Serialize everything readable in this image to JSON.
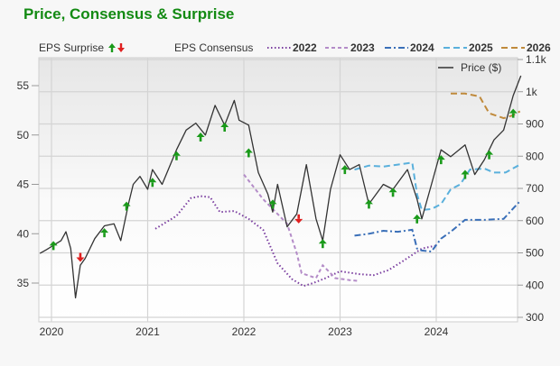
{
  "title": "Price, Consensus & Surprise",
  "legend": {
    "surprise_label": "EPS Surprise",
    "consensus_label": "EPS Consensus",
    "series": [
      {
        "name": "2022",
        "color": "#7b3fa0",
        "dash": "1.5,2.5"
      },
      {
        "name": "2023",
        "color": "#b48cc8",
        "dash": "4,3"
      },
      {
        "name": "2024",
        "color": "#3a6fb8",
        "dash": "7,3,2,3"
      },
      {
        "name": "2025",
        "color": "#5ab0dc",
        "dash": "7,4"
      },
      {
        "name": "2026",
        "color": "#c08a3c",
        "dash": "7,4"
      }
    ],
    "price_label": "Price ($)"
  },
  "colors": {
    "title": "#138a13",
    "up": "#1a9a1a",
    "down": "#e02020",
    "price": "#333333",
    "grid": "#d4d4d4"
  },
  "chart_data": {
    "type": "line",
    "title": "Price, Consensus & Surprise",
    "x_ticks": [
      "2020",
      "2021",
      "2022",
      "2023",
      "2024"
    ],
    "y_left": {
      "label": "EPS",
      "ticks": [
        35,
        40,
        45,
        50,
        55
      ],
      "range": [
        30.4,
        57.1
      ]
    },
    "y_right": {
      "label": "Price ($)",
      "ticks": [
        "300",
        "400",
        "500",
        "600",
        "700",
        "800",
        "900",
        "1k",
        "1.1k"
      ],
      "range": [
        290,
        1100
      ]
    },
    "price_points": [
      [
        2019.88,
        38
      ],
      [
        2019.95,
        38.4
      ],
      [
        2020.0,
        38.7
      ],
      [
        2020.05,
        39.0
      ],
      [
        2020.1,
        39.3
      ],
      [
        2020.15,
        40.2
      ],
      [
        2020.2,
        38.5
      ],
      [
        2020.25,
        33.5
      ],
      [
        2020.3,
        36.8
      ],
      [
        2020.35,
        37.5
      ],
      [
        2020.45,
        39.5
      ],
      [
        2020.55,
        40.8
      ],
      [
        2020.65,
        41.0
      ],
      [
        2020.72,
        39.3
      ],
      [
        2020.8,
        43.0
      ],
      [
        2020.85,
        45.0
      ],
      [
        2020.92,
        45.8
      ],
      [
        2021.0,
        44.5
      ],
      [
        2021.05,
        46.5
      ],
      [
        2021.15,
        45.0
      ],
      [
        2021.3,
        48.5
      ],
      [
        2021.4,
        50.5
      ],
      [
        2021.5,
        51.2
      ],
      [
        2021.6,
        50.0
      ],
      [
        2021.7,
        53.0
      ],
      [
        2021.8,
        51.0
      ],
      [
        2021.9,
        53.5
      ],
      [
        2021.95,
        51.5
      ],
      [
        2022.05,
        51.0
      ],
      [
        2022.15,
        46.2
      ],
      [
        2022.25,
        44.0
      ],
      [
        2022.3,
        42.2
      ],
      [
        2022.35,
        45.0
      ],
      [
        2022.45,
        40.7
      ],
      [
        2022.55,
        42.0
      ],
      [
        2022.65,
        47.0
      ],
      [
        2022.75,
        41.5
      ],
      [
        2022.82,
        39.3
      ],
      [
        2022.9,
        44.5
      ],
      [
        2023.0,
        48.0
      ],
      [
        2023.1,
        46.5
      ],
      [
        2023.2,
        47.0
      ],
      [
        2023.3,
        43.0
      ],
      [
        2023.45,
        45.0
      ],
      [
        2023.55,
        44.5
      ],
      [
        2023.7,
        46.5
      ],
      [
        2023.8,
        43.5
      ],
      [
        2023.85,
        41.5
      ],
      [
        2023.95,
        45.0
      ],
      [
        2024.05,
        48.5
      ],
      [
        2024.15,
        47.8
      ],
      [
        2024.3,
        49.0
      ],
      [
        2024.4,
        46.0
      ],
      [
        2024.5,
        47.5
      ],
      [
        2024.6,
        49.5
      ],
      [
        2024.7,
        50.5
      ],
      [
        2024.8,
        54.0
      ],
      [
        2024.88,
        56.0
      ]
    ],
    "consensus": {
      "2022": [
        [
          2021.08,
          40.5
        ],
        [
          2021.3,
          41.8
        ],
        [
          2021.45,
          43.6
        ],
        [
          2021.55,
          43.8
        ],
        [
          2021.65,
          43.7
        ],
        [
          2021.75,
          42.2
        ],
        [
          2021.9,
          42.3
        ],
        [
          2022.05,
          41.5
        ],
        [
          2022.2,
          40.4
        ],
        [
          2022.35,
          37.0
        ],
        [
          2022.5,
          35.4
        ],
        [
          2022.62,
          34.7
        ],
        [
          2022.72,
          35.0
        ],
        [
          2022.85,
          35.5
        ],
        [
          2023.0,
          36.2
        ],
        [
          2023.2,
          35.9
        ],
        [
          2023.35,
          35.8
        ],
        [
          2023.5,
          36.3
        ],
        [
          2023.65,
          37.2
        ],
        [
          2023.85,
          38.5
        ],
        [
          2024.0,
          38.8
        ]
      ],
      "2023": [
        [
          2022.0,
          46.0
        ],
        [
          2022.2,
          43.5
        ],
        [
          2022.45,
          41.0
        ],
        [
          2022.55,
          38.0
        ],
        [
          2022.6,
          36.0
        ],
        [
          2022.75,
          35.5
        ],
        [
          2022.82,
          36.8
        ],
        [
          2022.95,
          35.5
        ],
        [
          2023.1,
          35.3
        ],
        [
          2023.2,
          35.2
        ]
      ],
      "2024": [
        [
          2023.15,
          39.8
        ],
        [
          2023.3,
          40.0
        ],
        [
          2023.45,
          40.3
        ],
        [
          2023.6,
          40.2
        ],
        [
          2023.75,
          40.4
        ],
        [
          2023.8,
          38.5
        ],
        [
          2023.85,
          38.3
        ],
        [
          2023.95,
          38.2
        ],
        [
          2024.05,
          39.5
        ],
        [
          2024.15,
          40.2
        ],
        [
          2024.3,
          41.4
        ],
        [
          2024.5,
          41.4
        ],
        [
          2024.7,
          41.5
        ],
        [
          2024.87,
          43.3
        ]
      ],
      "2025": [
        [
          2023.15,
          46.5
        ],
        [
          2023.3,
          46.9
        ],
        [
          2023.45,
          46.8
        ],
        [
          2023.6,
          47.0
        ],
        [
          2023.75,
          47.2
        ],
        [
          2023.8,
          44.0
        ],
        [
          2023.85,
          42.4
        ],
        [
          2023.95,
          42.5
        ],
        [
          2024.05,
          43.0
        ],
        [
          2024.15,
          44.5
        ],
        [
          2024.25,
          45.0
        ],
        [
          2024.35,
          46.5
        ],
        [
          2024.5,
          46.6
        ],
        [
          2024.6,
          46.2
        ],
        [
          2024.72,
          46.2
        ],
        [
          2024.87,
          47.0
        ]
      ],
      "2026": [
        [
          2024.15,
          54.2
        ],
        [
          2024.3,
          54.2
        ],
        [
          2024.45,
          53.9
        ],
        [
          2024.55,
          52.2
        ],
        [
          2024.7,
          51.7
        ],
        [
          2024.8,
          52.0
        ],
        [
          2024.87,
          52.4
        ]
      ]
    },
    "surprises": [
      {
        "x": 2020.02,
        "y": 38.8,
        "dir": "up"
      },
      {
        "x": 2020.3,
        "y": 37.6,
        "dir": "down"
      },
      {
        "x": 2020.55,
        "y": 40.1,
        "dir": "up"
      },
      {
        "x": 2020.78,
        "y": 42.8,
        "dir": "up"
      },
      {
        "x": 2021.05,
        "y": 45.2,
        "dir": "up"
      },
      {
        "x": 2021.3,
        "y": 47.9,
        "dir": "up"
      },
      {
        "x": 2021.55,
        "y": 49.8,
        "dir": "up"
      },
      {
        "x": 2021.8,
        "y": 50.8,
        "dir": "up"
      },
      {
        "x": 2022.05,
        "y": 48.2,
        "dir": "up"
      },
      {
        "x": 2022.3,
        "y": 43.0,
        "dir": "up"
      },
      {
        "x": 2022.57,
        "y": 41.5,
        "dir": "down"
      },
      {
        "x": 2022.82,
        "y": 39.0,
        "dir": "up"
      },
      {
        "x": 2023.05,
        "y": 46.5,
        "dir": "up"
      },
      {
        "x": 2023.3,
        "y": 43.0,
        "dir": "up"
      },
      {
        "x": 2023.55,
        "y": 44.2,
        "dir": "up"
      },
      {
        "x": 2023.8,
        "y": 41.5,
        "dir": "up"
      },
      {
        "x": 2024.05,
        "y": 47.5,
        "dir": "up"
      },
      {
        "x": 2024.3,
        "y": 46.0,
        "dir": "up"
      },
      {
        "x": 2024.55,
        "y": 48.0,
        "dir": "up"
      },
      {
        "x": 2024.8,
        "y": 52.2,
        "dir": "up"
      }
    ]
  }
}
